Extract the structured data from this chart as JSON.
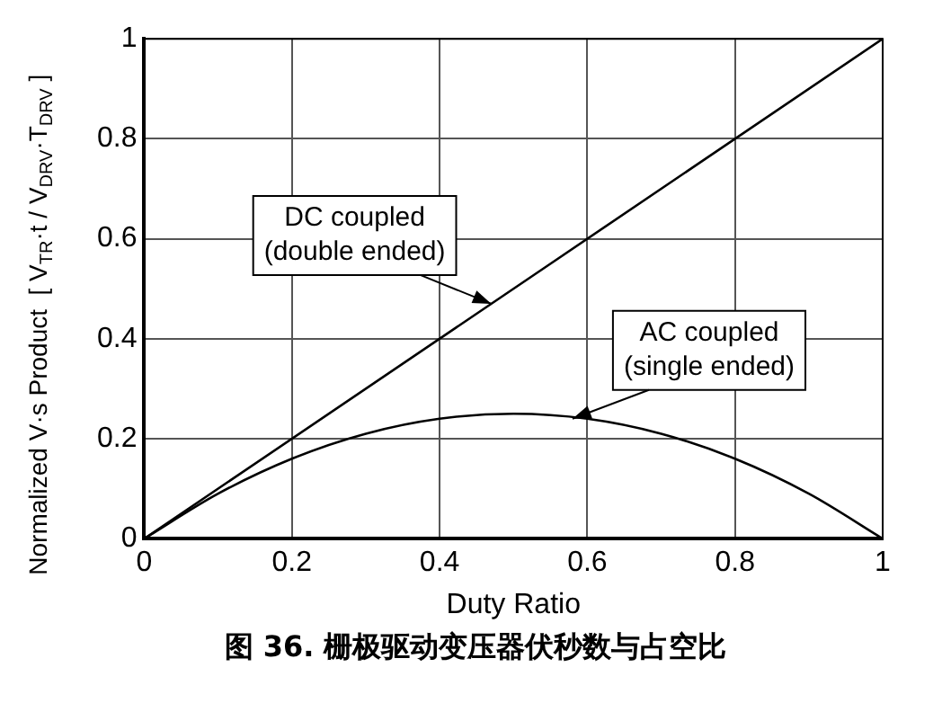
{
  "chart_data": {
    "type": "line",
    "title": "图 36. 栅极驱动变压器伏秒数与占空比",
    "xlabel": "Duty Ratio",
    "ylabel": "Normalized V·s Product  [ V$_{TR}$·t / V$_{DRV}$·T$_{DRV}$ ]",
    "series": [
      {
        "color": "#000000",
        "x": [
          0,
          1
        ],
        "values": [
          0,
          1
        ]
      },
      {
        "color": "#000000",
        "x": [
          0,
          0.1,
          0.2,
          0.3,
          0.4,
          0.5,
          0.6,
          0.7,
          0.8,
          0.9,
          1
        ],
        "values": [
          0,
          0.09,
          0.16,
          0.21,
          0.24,
          0.25,
          0.24,
          0.21,
          0.16,
          0.09,
          0
        ]
      }
    ],
    "annotations": [
      {
        "text": "DC coupled\n(double ended)",
        "x": 0.47,
        "y": 0.47
      },
      {
        "text": "AC coupled\n(single ended)",
        "x": 0.58,
        "y": 0.24
      }
    ],
    "xlim": [
      0,
      1
    ],
    "ylim": [
      0,
      1
    ],
    "xticks": [
      0,
      0.2,
      0.4,
      0.6,
      0.8,
      1
    ],
    "yticks": [
      0,
      0.2,
      0.4,
      0.6,
      0.8,
      1
    ],
    "grid": true,
    "legend": false,
    "marker": "none",
    "line_style": "solid"
  }
}
